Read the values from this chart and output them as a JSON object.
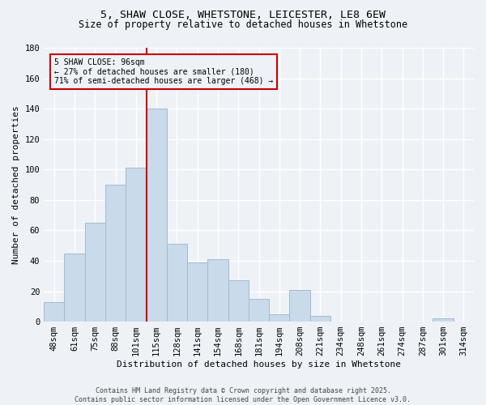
{
  "title_line1": "5, SHAW CLOSE, WHETSTONE, LEICESTER, LE8 6EW",
  "title_line2": "Size of property relative to detached houses in Whetstone",
  "xlabel": "Distribution of detached houses by size in Whetstone",
  "ylabel": "Number of detached properties",
  "bar_labels": [
    "48sqm",
    "61sqm",
    "75sqm",
    "88sqm",
    "101sqm",
    "115sqm",
    "128sqm",
    "141sqm",
    "154sqm",
    "168sqm",
    "181sqm",
    "194sqm",
    "208sqm",
    "221sqm",
    "234sqm",
    "248sqm",
    "261sqm",
    "274sqm",
    "287sqm",
    "301sqm",
    "314sqm"
  ],
  "bar_values": [
    13,
    45,
    65,
    90,
    101,
    140,
    51,
    39,
    41,
    27,
    15,
    5,
    21,
    4,
    0,
    0,
    0,
    0,
    0,
    2,
    0
  ],
  "bar_color": "#c9daea",
  "bar_edgecolor": "#a0bbd0",
  "annotation_text": "5 SHAW CLOSE: 96sqm\n← 27% of detached houses are smaller (180)\n71% of semi-detached houses are larger (468) →",
  "annotation_box_edgecolor": "#cc0000",
  "vline_x": 4.5,
  "vline_color": "#cc0000",
  "ylim": [
    0,
    180
  ],
  "yticks": [
    0,
    20,
    40,
    60,
    80,
    100,
    120,
    140,
    160,
    180
  ],
  "bg_color": "#eef2f7",
  "footer_text": "Contains HM Land Registry data © Crown copyright and database right 2025.\nContains public sector information licensed under the Open Government Licence v3.0.",
  "grid_color": "#ffffff",
  "title_fontsize": 9.5,
  "subtitle_fontsize": 8.5,
  "tick_fontsize": 7.5,
  "ylabel_fontsize": 8,
  "xlabel_fontsize": 8
}
